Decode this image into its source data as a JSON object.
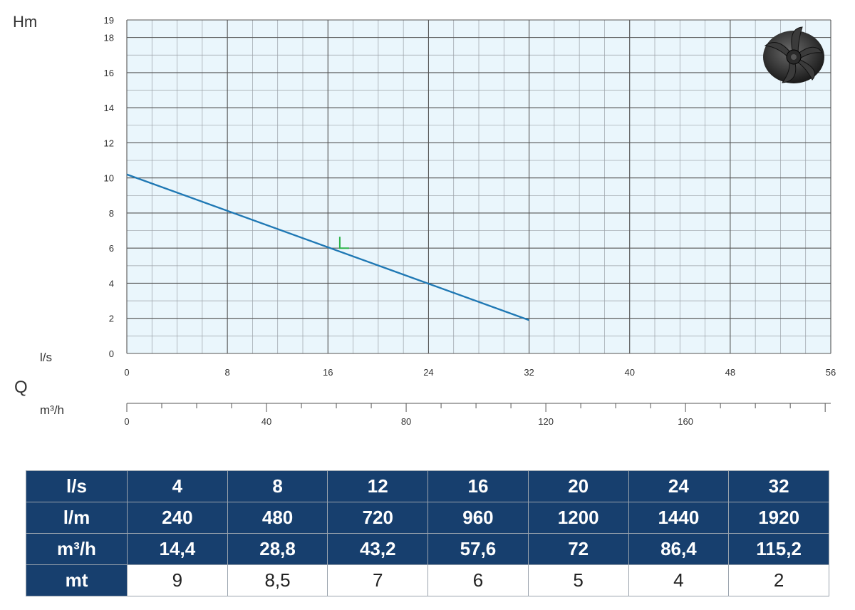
{
  "chart_data": {
    "type": "line",
    "ylabel": "Hm",
    "xlabel_primary": "l/s",
    "q_label": "Q",
    "xlabel_secondary": "m³/h",
    "ylim": [
      0,
      19
    ],
    "xlim": [
      0,
      56
    ],
    "y_ticks": [
      0,
      2,
      4,
      6,
      8,
      10,
      12,
      14,
      16,
      18,
      19
    ],
    "x_ticks": [
      0,
      8,
      16,
      24,
      32,
      40,
      48,
      56
    ],
    "x2_ticks": [
      0,
      40,
      80,
      120,
      160
    ],
    "grid": true,
    "series": [
      {
        "x": [
          0,
          32
        ],
        "y": [
          10.2,
          1.9
        ],
        "color": "#1f78b4"
      }
    ],
    "marker": {
      "x": 17,
      "y": 6,
      "color": "#2db34a"
    }
  },
  "table": {
    "rows": [
      {
        "label": "l/s",
        "style": "blue",
        "values": [
          "4",
          "8",
          "12",
          "16",
          "20",
          "24",
          "32"
        ]
      },
      {
        "label": "l/m",
        "style": "blue",
        "values": [
          "240",
          "480",
          "720",
          "960",
          "1200",
          "1440",
          "1920"
        ]
      },
      {
        "label": "m³/h",
        "style": "blue",
        "values": [
          "14,4",
          "28,8",
          "43,2",
          "57,6",
          "72",
          "86,4",
          "115,2"
        ]
      },
      {
        "label": "mt",
        "style": "white",
        "values": [
          "9",
          "8,5",
          "7",
          "6",
          "5",
          "4",
          "2"
        ]
      }
    ]
  },
  "colors": {
    "plot_bg": "#eaf6fc",
    "grid_major": "#555555",
    "grid_minor": "#9aa0a6",
    "table_header": "#173f6e"
  },
  "icon": "impeller-icon"
}
